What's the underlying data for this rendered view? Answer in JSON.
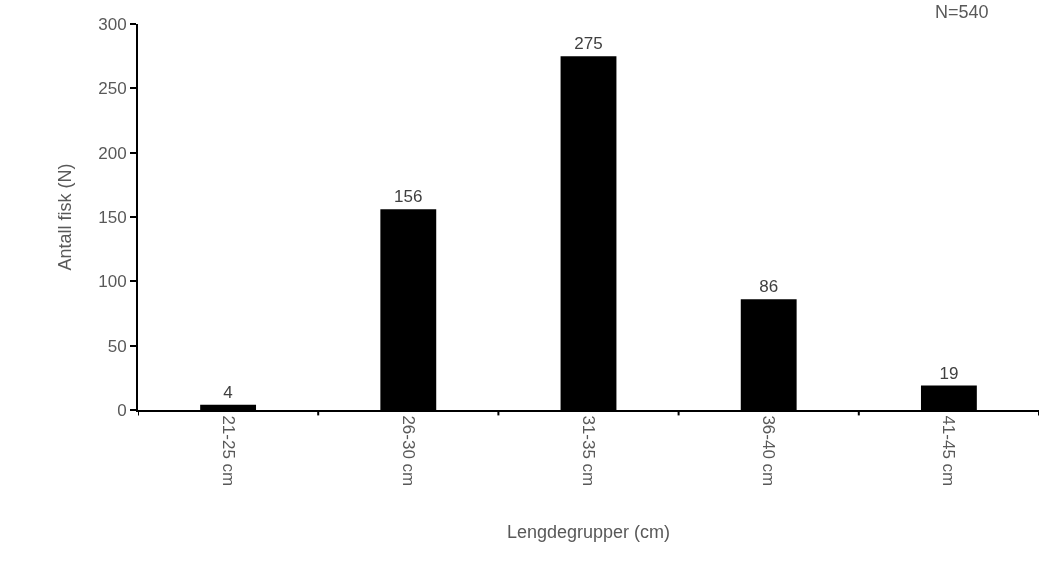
{
  "chart_data": {
    "type": "bar",
    "xlabel": "Lengdegrupper (cm)",
    "ylabel": "Antall fisk (N)",
    "annotations": [
      "N=540"
    ],
    "categories": [
      "21-25 cm",
      "26-30 cm",
      "31-35 cm",
      "36-40 cm",
      "41-45 cm"
    ],
    "values": [
      4,
      156,
      275,
      86,
      19
    ],
    "color": "#000000",
    "ylim": [
      0,
      300
    ],
    "yticks": [
      0,
      50,
      100,
      150,
      200,
      250,
      300
    ],
    "data_labels": true
  }
}
